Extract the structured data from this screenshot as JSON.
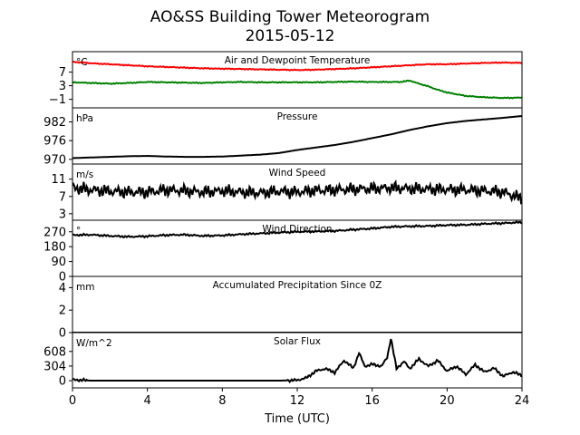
{
  "title_line1": "AO&SS Building Tower Meteorogram",
  "title_line2": "2015-05-12",
  "chart_data": {
    "type": "line",
    "xlabel": "Time (UTC)",
    "xlim": [
      0,
      24
    ],
    "xticks": [
      "0",
      "4",
      "8",
      "12",
      "16",
      "20",
      "24"
    ],
    "panels": [
      {
        "id": "temperature",
        "title": "Air and Dewpoint Temperature",
        "unit": "°C",
        "ylim": [
          -3.5,
          13
        ],
        "yticks": [
          "7",
          "3",
          "−1"
        ],
        "ytick_values": [
          7,
          3,
          -1
        ],
        "series": [
          {
            "color": "#ff0000",
            "x": [
              0,
              1,
              2,
              3,
              4,
              5,
              6,
              7,
              8,
              9,
              10,
              11,
              12,
              13,
              14,
              15,
              16,
              17,
              18,
              19,
              20,
              21,
              22,
              23,
              24
            ],
            "values": [
              10.0,
              9.6,
              9.3,
              9.0,
              8.7,
              8.5,
              8.3,
              8.1,
              8.0,
              7.9,
              7.8,
              7.7,
              7.6,
              7.7,
              7.9,
              8.1,
              8.4,
              8.7,
              9.0,
              9.3,
              9.3,
              9.5,
              9.7,
              9.8,
              9.7
            ]
          },
          {
            "color": "#008000",
            "x": [
              0,
              1,
              2,
              3,
              4,
              5,
              6,
              7,
              8,
              9,
              10,
              11,
              12,
              13,
              14,
              15,
              16,
              17,
              17.5,
              18,
              18.5,
              19,
              19.5,
              20,
              21,
              22,
              23,
              24
            ],
            "values": [
              4.0,
              3.8,
              3.6,
              3.8,
              4.1,
              4.0,
              3.9,
              3.8,
              4.0,
              4.1,
              4.0,
              4.0,
              4.0,
              4.0,
              4.1,
              4.2,
              4.1,
              4.1,
              4.1,
              4.5,
              3.6,
              2.8,
              1.8,
              1.0,
              0.0,
              -0.4,
              -0.6,
              -0.5
            ]
          }
        ]
      },
      {
        "id": "pressure",
        "title": "Pressure",
        "unit": "hPa",
        "ylim": [
          968.5,
          986.5
        ],
        "yticks": [
          "982",
          "976",
          "970"
        ],
        "ytick_values": [
          982,
          976,
          970
        ],
        "series": [
          {
            "color": "#000000",
            "x": [
              0,
              1,
              2,
              3,
              4,
              5,
              6,
              7,
              8,
              9,
              10,
              11,
              12,
              13,
              14,
              15,
              16,
              17,
              18,
              19,
              20,
              21,
              22,
              23,
              24
            ],
            "values": [
              970.4,
              970.6,
              970.8,
              971.0,
              971.1,
              970.9,
              970.8,
              970.8,
              970.9,
              971.2,
              971.5,
              972.0,
              973.0,
              973.8,
              974.6,
              975.6,
              976.8,
              978.0,
              979.4,
              980.6,
              981.6,
              982.3,
              982.8,
              983.3,
              983.9
            ]
          }
        ]
      },
      {
        "id": "wind_speed",
        "title": "Wind Speed",
        "unit": "m/s",
        "ylim": [
          1.5,
          14.5
        ],
        "yticks": [
          "11",
          "7",
          "3"
        ],
        "ytick_values": [
          11,
          7,
          3
        ],
        "series": [
          {
            "color": "#000000",
            "x": [
              0,
              1,
              2,
              3,
              4,
              5,
              6,
              7,
              8,
              9,
              10,
              11,
              12,
              13,
              14,
              15,
              16,
              17,
              18,
              19,
              20,
              21,
              22,
              23,
              24
            ],
            "values": [
              9.0,
              8.5,
              8.2,
              8.0,
              8.0,
              8.5,
              8.3,
              8.0,
              8.3,
              8.0,
              7.8,
              8.2,
              8.0,
              8.4,
              8.5,
              8.7,
              8.8,
              9.0,
              8.8,
              8.7,
              8.6,
              8.5,
              8.3,
              8.0,
              6.5
            ]
          }
        ]
      },
      {
        "id": "wind_direction",
        "title": "Wind Direction",
        "unit": "°",
        "ylim": [
          0,
          340
        ],
        "yticks": [
          "270",
          "180",
          "90",
          "0"
        ],
        "ytick_values": [
          270,
          180,
          90,
          0
        ],
        "series": [
          {
            "color": "#000000",
            "x": [
              0,
              1,
              2,
              3,
              4,
              5,
              6,
              7,
              8,
              9,
              10,
              11,
              12,
              13,
              14,
              15,
              16,
              17,
              18,
              19,
              20,
              21,
              22,
              23,
              24
            ],
            "values": [
              250,
              252,
              245,
              240,
              243,
              250,
              252,
              245,
              248,
              255,
              260,
              265,
              270,
              272,
              275,
              283,
              290,
              300,
              303,
              305,
              310,
              312,
              318,
              322,
              328
            ]
          }
        ]
      },
      {
        "id": "precipitation",
        "title": "Accumulated Precipitation Since 0Z",
        "unit": "mm",
        "ylim": [
          0,
          5
        ],
        "yticks": [
          "4",
          "2",
          "0"
        ],
        "ytick_values": [
          4,
          2,
          0
        ],
        "series": [
          {
            "color": "#000000",
            "x": [
              0,
              24
            ],
            "values": [
              0,
              0
            ]
          }
        ]
      },
      {
        "id": "solar_flux",
        "title": "Solar Flux",
        "unit": "W/m^2",
        "ylim": [
          -150,
          1000
        ],
        "yticks": [
          "608",
          "304",
          "0"
        ],
        "ytick_values": [
          608,
          304,
          0
        ],
        "series": [
          {
            "color": "#000000",
            "x": [
              0,
              1,
              2,
              3,
              4,
              5,
              6,
              7,
              8,
              9,
              10,
              11,
              12,
              12.5,
              13,
              13.5,
              14,
              14.5,
              15,
              15.3,
              15.6,
              16,
              16.5,
              16.8,
              17,
              17.3,
              17.7,
              18,
              18.5,
              19,
              19.5,
              20,
              20.5,
              21,
              21.5,
              22,
              22.5,
              23,
              23.5,
              24
            ],
            "values": [
              20,
              0,
              0,
              0,
              0,
              0,
              0,
              0,
              0,
              0,
              0,
              0,
              10,
              60,
              200,
              250,
              170,
              420,
              260,
              580,
              300,
              340,
              300,
              480,
              880,
              250,
              400,
              250,
              450,
              300,
              420,
              200,
              300,
              130,
              330,
              180,
              260,
              90,
              180,
              110
            ]
          }
        ]
      }
    ]
  }
}
